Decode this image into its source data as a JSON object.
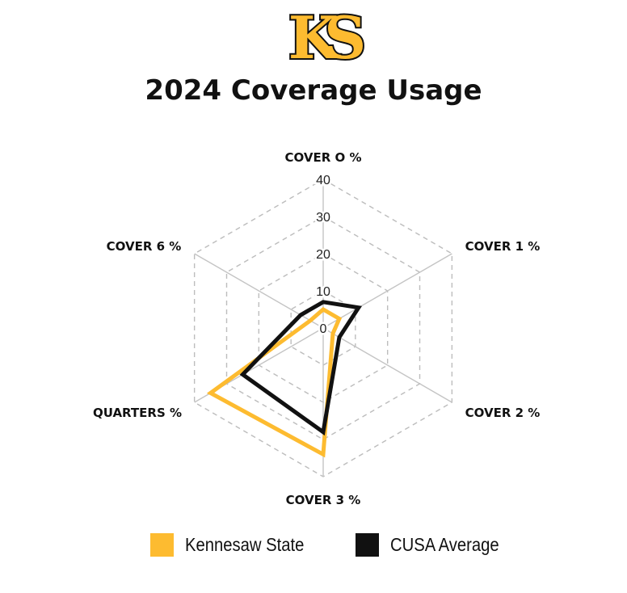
{
  "title": "2024 Coverage Usage",
  "logo": {
    "text": "KS",
    "colors": {
      "gold": "#FDBB30",
      "black": "#111111"
    }
  },
  "chart_data": {
    "type": "radar",
    "axes": [
      "COVER O %",
      "COVER 1 %",
      "COVER 2 %",
      "COVER 3 %",
      "QUARTERS %",
      "COVER 6 %"
    ],
    "ticks": [
      "0",
      "10",
      "20",
      "30",
      "40"
    ],
    "range": [
      0,
      40
    ],
    "series": [
      {
        "name": "Kennesaw State",
        "color": "#FDBB30",
        "values": [
          5,
          5,
          3,
          34,
          35,
          4
        ]
      },
      {
        "name": "CUSA Average",
        "color": "#111111",
        "values": [
          7,
          11,
          5,
          28,
          25,
          7
        ]
      }
    ],
    "legend_position": "bottom"
  }
}
